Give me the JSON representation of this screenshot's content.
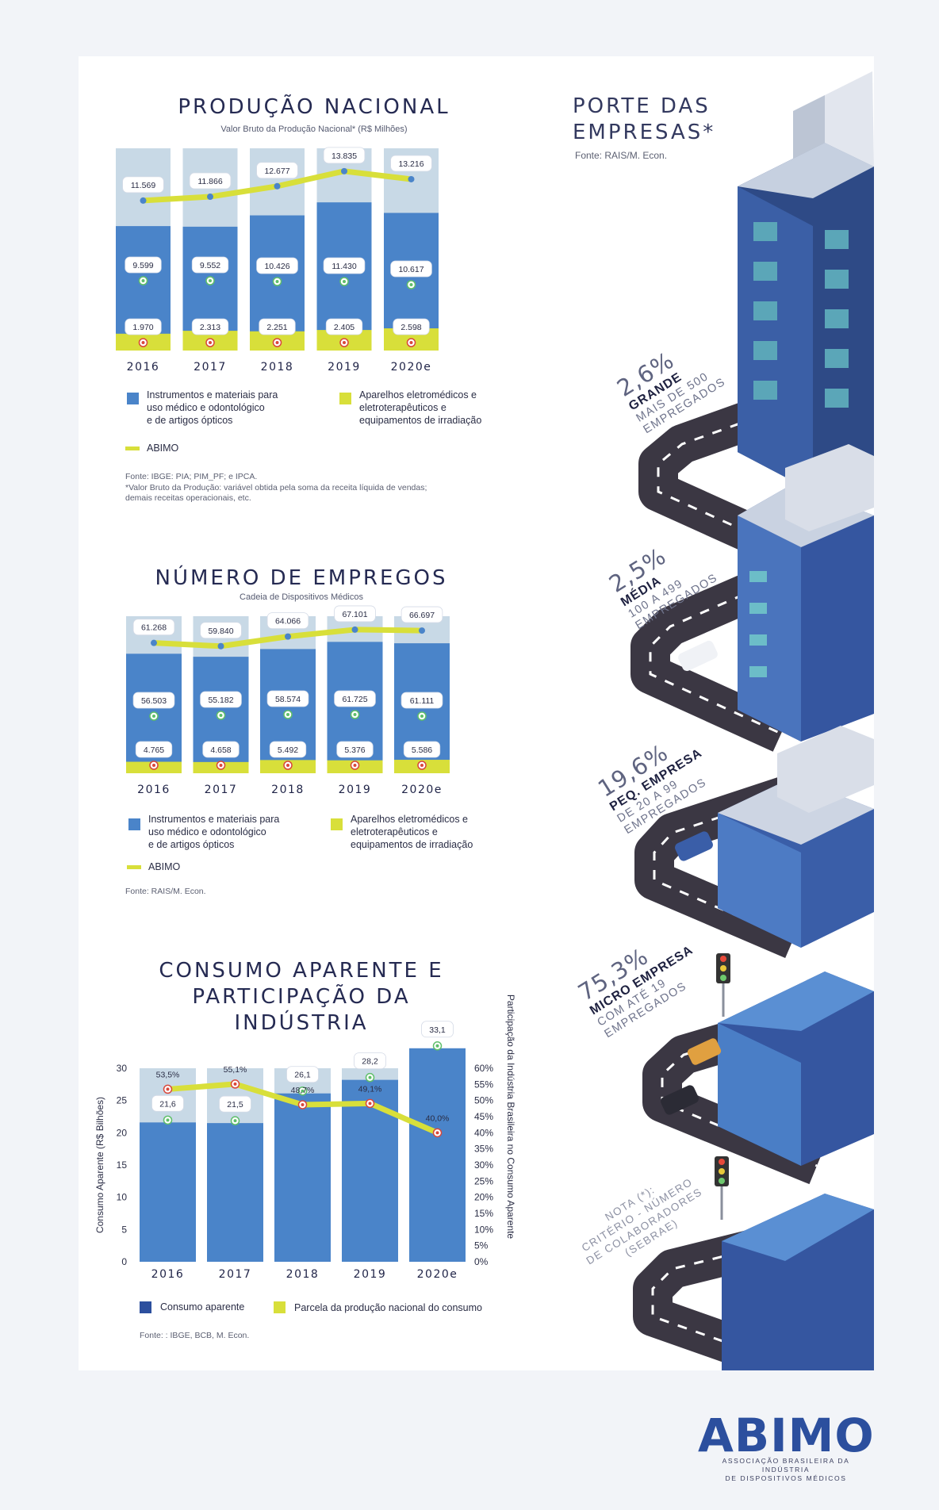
{
  "porte": {
    "title_line1": "PORTE DAS",
    "title_line2": "EMPRESAS*",
    "source": "Fonte: RAIS/M. Econ.",
    "segments": [
      {
        "pct": "2,6%",
        "name": "GRANDE",
        "desc1": "MAIS DE 500",
        "desc2": "EMPREGADOS"
      },
      {
        "pct": "2,5%",
        "name": "MÉDIA",
        "desc1": "100 A 499",
        "desc2": "EMPREGADOS"
      },
      {
        "pct": "19,6%",
        "name": "PEQ. EMPRESA",
        "desc1": "DE 20 A 99",
        "desc2": "EMPREGADOS"
      },
      {
        "pct": "75,3%",
        "name": "MICRO EMPRESA",
        "desc1": "COM ATÉ 19",
        "desc2": "EMPREGADOS"
      }
    ],
    "nota": [
      "NOTA (*):",
      "CRITÉRIO - NÚMERO",
      "DE COLABORADORES",
      "(SEBRAE)"
    ]
  },
  "chart_data": [
    {
      "type": "bar",
      "title": "PRODUÇÃO NACIONAL",
      "subtitle": "Valor Bruto da Produção Nacional* (R$ Milhões)",
      "categories": [
        "2016",
        "2017",
        "2018",
        "2019",
        "2020e"
      ],
      "series": [
        {
          "name": "Instrumentos e materiais para uso médico e odontológico e de artigos ópticos",
          "values": [
            9599,
            9552,
            10426,
            11430,
            10617
          ],
          "labels": [
            "9.599",
            "9.552",
            "10.426",
            "11.430",
            "10.617"
          ],
          "color": "#4a84c9"
        },
        {
          "name": "Aparelhos eletromédicos e eletroterapêuticos e equipamentos de irradiação",
          "values": [
            1970,
            2313,
            2251,
            2405,
            2598
          ],
          "labels": [
            "1.970",
            "2.313",
            "2.251",
            "2.405",
            "2.598"
          ],
          "color": "#d8df3a"
        },
        {
          "name": "ABIMO",
          "values": [
            11569,
            11866,
            12677,
            13835,
            13216
          ],
          "labels": [
            "11.569",
            "11.866",
            "12.677",
            "13.835",
            "13.216"
          ],
          "color": "#d8df3a"
        }
      ],
      "legend": [
        "Instrumentos e materiais para",
        "uso médico e odontológico",
        "e de artigos ópticos",
        "Aparelhos eletromédicos e",
        "eletroterapêuticos e",
        "equipamentos de irradiação",
        "ABIMO"
      ],
      "source": [
        "Fonte: IBGE: PIA; PIM_PF; e IPCA.",
        "*Valor Bruto da Produção: variável obtida pela soma da receita líquida de vendas;",
        "demais receitas operacionais, etc."
      ]
    },
    {
      "type": "bar",
      "title": "NÚMERO DE EMPREGOS",
      "subtitle": "Cadeia de Dispositivos Médicos",
      "categories": [
        "2016",
        "2017",
        "2018",
        "2019",
        "2020e"
      ],
      "series": [
        {
          "name": "Instrumentos e materiais para uso médico e odontológico e de artigos ópticos",
          "values": [
            56503,
            55182,
            58574,
            61725,
            61111
          ],
          "labels": [
            "56.503",
            "55.182",
            "58.574",
            "61.725",
            "61.111"
          ],
          "color": "#4a84c9"
        },
        {
          "name": "Aparelhos eletromédicos e eletroterapêuticos e equipamentos de irradiação",
          "values": [
            4765,
            4658,
            5492,
            5376,
            5586
          ],
          "labels": [
            "4.765",
            "4.658",
            "5.492",
            "5.376",
            "5.586"
          ],
          "color": "#d8df3a"
        },
        {
          "name": "ABIMO",
          "values": [
            61268,
            59840,
            64066,
            67101,
            66697
          ],
          "labels": [
            "61.268",
            "59.840",
            "64.066",
            "67.101",
            "66.697"
          ],
          "color": "#d8df3a"
        }
      ],
      "legend": [
        "Instrumentos e materiais para",
        "uso médico e odontológico",
        "e de artigos ópticos",
        "Aparelhos eletromédicos e",
        "eletroterapêuticos e",
        "equipamentos de irradiação",
        "ABIMO"
      ],
      "source": [
        "Fonte: RAIS/M. Econ."
      ]
    },
    {
      "type": "bar",
      "title_lines": [
        "CONSUMO APARENTE E",
        "PARTICIPAÇÃO DA",
        "INDÚSTRIA"
      ],
      "categories": [
        "2016",
        "2017",
        "2018",
        "2019",
        "2020e"
      ],
      "series": [
        {
          "name": "Consumo aparente",
          "values": [
            21.6,
            21.5,
            26.1,
            28.2,
            33.1
          ],
          "labels": [
            "21,6",
            "21,5",
            "26,1",
            "28,2",
            "33,1"
          ],
          "color": "#4a84c9"
        },
        {
          "name": "Parcela da produção nacional do consumo",
          "values": [
            53.5,
            55.1,
            48.7,
            49.1,
            40.0
          ],
          "labels": [
            "53,5%",
            "55,1%",
            "48,7%",
            "49,1%",
            "40,0%"
          ],
          "color": "#d8df3a"
        }
      ],
      "ylabel": "Consumo Aparente (R$ Bilhões)",
      "y2label": "Participação da Indústria Brasileira no Consumo Aparente",
      "ylim": [
        0,
        30
      ],
      "y_ticks": [
        "0",
        "5",
        "10",
        "15",
        "20",
        "25",
        "30"
      ],
      "y2lim": [
        0,
        60
      ],
      "y2_ticks": [
        "0%",
        "5%",
        "10%",
        "15%",
        "20%",
        "25%",
        "30%",
        "35%",
        "40%",
        "45%",
        "50%",
        "55%",
        "60%"
      ],
      "legend": [
        "Consumo aparente",
        "Parcela da produção nacional do consumo"
      ],
      "source": "Fonte: : IBGE, BCB, M. Econ."
    }
  ],
  "logo": {
    "text": "ABIMO",
    "sub1": "ASSOCIAÇÃO BRASILEIRA DA INDÚSTRIA",
    "sub2": "DE DISPOSITIVOS MÉDICOS"
  }
}
